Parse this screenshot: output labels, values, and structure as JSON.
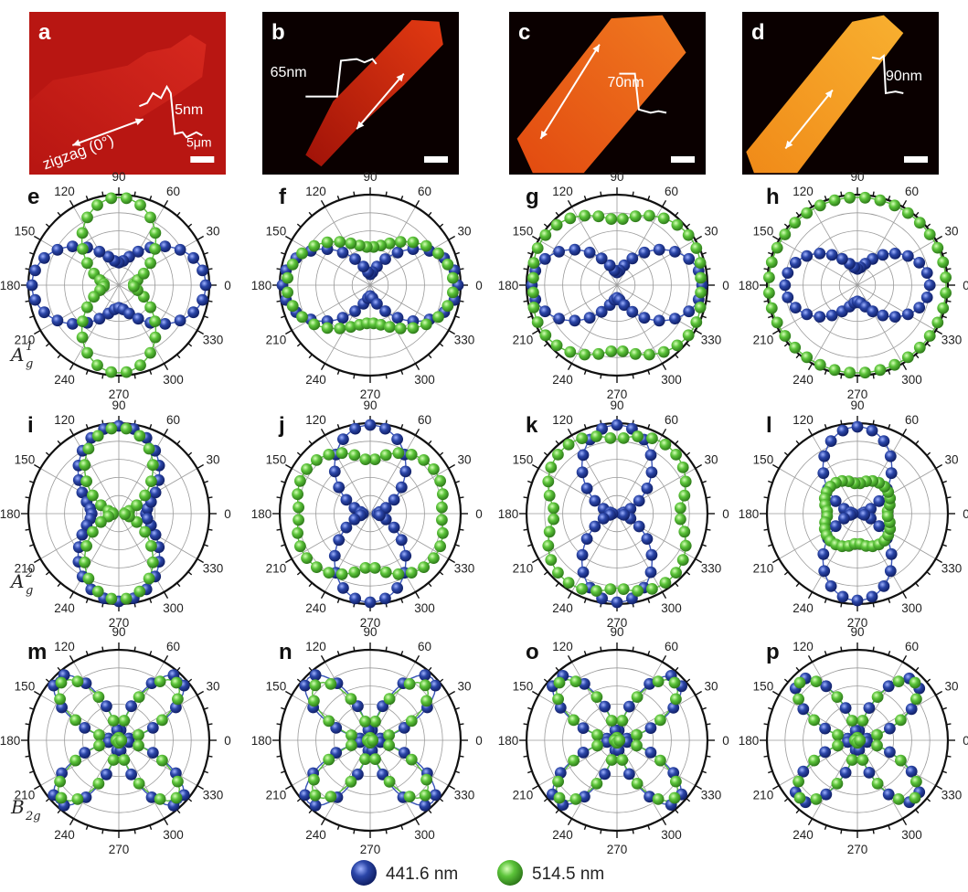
{
  "image_panels": [
    {
      "label": "a",
      "thickness": "5nm",
      "direction_label": "zigzag (0°)",
      "scale_label": "5μm",
      "palette": [
        "#6a0806",
        "#b81612",
        "#d6281e"
      ]
    },
    {
      "label": "b",
      "thickness": "65nm",
      "direction_label": "",
      "scale_label": "",
      "palette": [
        "#0a0000",
        "#a01208",
        "#e23a12"
      ]
    },
    {
      "label": "c",
      "thickness": "70nm",
      "direction_label": "",
      "scale_label": "",
      "palette": [
        "#0a0000",
        "#e24a10",
        "#f07a20"
      ]
    },
    {
      "label": "d",
      "thickness": "90nm",
      "direction_label": "",
      "scale_label": "",
      "palette": [
        "#0a0000",
        "#f08a18",
        "#f8b030"
      ]
    }
  ],
  "row_labels": [
    {
      "main": "A",
      "sup": "1",
      "sub": "g"
    },
    {
      "main": "A",
      "sup": "2",
      "sub": "g"
    },
    {
      "main": "B",
      "sup": "",
      "sub": "2g"
    }
  ],
  "polar_tick_labels": [
    "0",
    "30",
    "60",
    "90",
    "120",
    "150",
    "180",
    "210",
    "240",
    "270",
    "300",
    "330"
  ],
  "colors": {
    "blue": "#2b46a8",
    "green": "#5cc43a",
    "blue_line": "#3a55b8",
    "green_line": "#56bb38"
  },
  "legend": [
    {
      "label": "441.6 nm",
      "color": "#2b46a8"
    },
    {
      "label": "514.5 nm",
      "color": "#5cc43a"
    }
  ],
  "chart_data": [
    {
      "type": "polar-scatter",
      "label": "e",
      "mode": "A1g",
      "series": [
        {
          "color": "blue",
          "a": 0.25,
          "b": 0.96,
          "p": 2
        },
        {
          "color": "green",
          "a": 0.97,
          "b": 0.16,
          "p": 2
        }
      ]
    },
    {
      "type": "polar-scatter",
      "label": "f",
      "mode": "A1g",
      "series": [
        {
          "color": "blue",
          "a": 0.12,
          "b": 0.97,
          "p": 2
        },
        {
          "color": "green",
          "a": 0.42,
          "b": 0.92,
          "p": 2
        }
      ]
    },
    {
      "type": "polar-scatter",
      "label": "g",
      "mode": "A1g",
      "series": [
        {
          "color": "blue",
          "a": 0.14,
          "b": 0.94,
          "p": 2
        },
        {
          "color": "green",
          "a": 0.72,
          "b": 0.92,
          "p": 1.6
        }
      ]
    },
    {
      "type": "polar-scatter",
      "label": "h",
      "mode": "A1g",
      "series": [
        {
          "color": "blue",
          "a": 0.18,
          "b": 0.8,
          "p": 2
        },
        {
          "color": "green",
          "a": 0.97,
          "b": 0.98,
          "p": 2
        }
      ]
    },
    {
      "type": "polar-scatter",
      "label": "i",
      "mode": "A2g",
      "series": [
        {
          "color": "blue",
          "a": 0.97,
          "b": 0.3,
          "p": 2
        },
        {
          "color": "green",
          "a": 0.95,
          "b": 0.06,
          "p": 2
        }
      ]
    },
    {
      "type": "polar-scatter",
      "label": "j",
      "mode": "A2g",
      "series": [
        {
          "color": "blue",
          "a": 0.98,
          "b": 0.08,
          "p": 2
        },
        {
          "color": "green",
          "a": 0.58,
          "b": 0.78,
          "p": 1.4
        }
      ]
    },
    {
      "type": "polar-scatter",
      "label": "k",
      "mode": "A2g",
      "series": [
        {
          "color": "blue",
          "a": 0.98,
          "b": 0.05,
          "p": 2
        },
        {
          "color": "green",
          "a": 0.82,
          "b": 0.68,
          "p": 1.4
        }
      ]
    },
    {
      "type": "polar-scatter",
      "label": "l",
      "mode": "A2g",
      "series": [
        {
          "color": "blue",
          "a": 0.96,
          "b": 0.05,
          "p": 2
        },
        {
          "color": "green",
          "a": 0.32,
          "b": 0.32,
          "p": 1.2
        }
      ]
    },
    {
      "type": "polar-scatter",
      "label": "m",
      "mode": "B2g",
      "series": [
        {
          "color": "blue",
          "a": 0.97,
          "p": 2
        },
        {
          "color": "green",
          "a": 0.9,
          "p": 2
        }
      ]
    },
    {
      "type": "polar-scatter",
      "label": "n",
      "mode": "B2g",
      "series": [
        {
          "color": "blue",
          "a": 0.97,
          "p": 2
        },
        {
          "color": "green",
          "a": 0.86,
          "p": 2
        }
      ]
    },
    {
      "type": "polar-scatter",
      "label": "o",
      "mode": "B2g",
      "series": [
        {
          "color": "blue",
          "a": 0.96,
          "p": 2
        },
        {
          "color": "green",
          "a": 0.9,
          "p": 2
        }
      ]
    },
    {
      "type": "polar-scatter",
      "label": "p",
      "mode": "B2g",
      "series": [
        {
          "color": "blue",
          "a": 0.92,
          "p": 2
        },
        {
          "color": "green",
          "a": 0.9,
          "p": 2
        }
      ]
    }
  ]
}
